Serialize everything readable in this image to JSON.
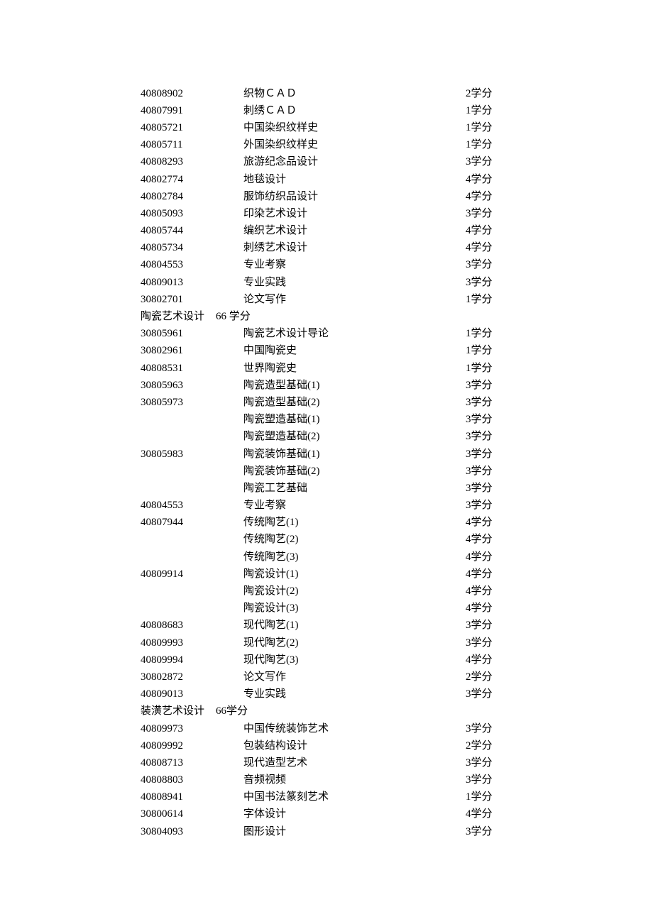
{
  "rows": [
    {
      "type": "course",
      "code": "40808902",
      "name": "织物ＣＡＤ",
      "credit": "2学分"
    },
    {
      "type": "course",
      "code": "40807991",
      "name": "刺绣ＣＡＤ",
      "credit": "1学分"
    },
    {
      "type": "course",
      "code": "40805721",
      "name": "中国染织纹样史",
      "credit": "1学分"
    },
    {
      "type": "course",
      "code": "40805711",
      "name": "外国染织纹样史",
      "credit": "1学分"
    },
    {
      "type": "course",
      "code": "40808293",
      "name": "旅游纪念品设计",
      "credit": "3学分"
    },
    {
      "type": "course",
      "code": "40802774",
      "name": "地毯设计",
      "credit": "4学分"
    },
    {
      "type": "course",
      "code": "40802784",
      "name": "服饰纺织品设计",
      "credit": "4学分"
    },
    {
      "type": "course",
      "code": "40805093",
      "name": "印染艺术设计",
      "credit": "3学分"
    },
    {
      "type": "course",
      "code": "40805744",
      "name": "编织艺术设计",
      "credit": "4学分"
    },
    {
      "type": "course",
      "code": "40805734",
      "name": "刺绣艺术设计",
      "credit": "4学分"
    },
    {
      "type": "course",
      "code": "40804553",
      "name": "专业考察",
      "credit": "3学分"
    },
    {
      "type": "course",
      "code": "40809013",
      "name": "专业实践",
      "credit": "3学分"
    },
    {
      "type": "course",
      "code": "30802701",
      "name": "论文写作",
      "credit": "1学分"
    },
    {
      "type": "section",
      "title": "陶瓷艺术设计",
      "credit": "66 学分"
    },
    {
      "type": "course",
      "code": "30805961",
      "name": "陶瓷艺术设计导论",
      "credit": "1学分"
    },
    {
      "type": "course",
      "code": "30802961",
      "name": "中国陶瓷史",
      "credit": "1学分"
    },
    {
      "type": "course",
      "code": "40808531",
      "name": "世界陶瓷史",
      "credit": "1学分"
    },
    {
      "type": "course",
      "code": "30805963",
      "name": "陶瓷造型基础(1)",
      "credit": "3学分"
    },
    {
      "type": "course",
      "code": "30805973",
      "name": "陶瓷造型基础(2)",
      "credit": "3学分"
    },
    {
      "type": "course",
      "code": "",
      "name": "陶瓷塑造基础(1)",
      "credit": "3学分"
    },
    {
      "type": "course",
      "code": "",
      "name": "陶瓷塑造基础(2)",
      "credit": "3学分"
    },
    {
      "type": "course",
      "code": "30805983",
      "name": "陶瓷装饰基础(1)",
      "credit": "3学分"
    },
    {
      "type": "course",
      "code": "",
      "name": "陶瓷装饰基础(2)",
      "credit": "3学分"
    },
    {
      "type": "course",
      "code": "",
      "name": "陶瓷工艺基础",
      "credit": "3学分"
    },
    {
      "type": "course",
      "code": "40804553",
      "name": "专业考察",
      "credit": "3学分"
    },
    {
      "type": "course",
      "code": "40807944",
      "name": "传统陶艺(1)",
      "credit": "4学分"
    },
    {
      "type": "course",
      "code": "",
      "name": "传统陶艺(2)",
      "credit": "4学分"
    },
    {
      "type": "course",
      "code": "",
      "name": "传统陶艺(3)",
      "credit": "4学分"
    },
    {
      "type": "course",
      "code": "40809914",
      "name": "陶瓷设计(1)",
      "credit": "4学分"
    },
    {
      "type": "course",
      "code": "",
      "name": "陶瓷设计(2)",
      "credit": "4学分"
    },
    {
      "type": "course",
      "code": "",
      "name": "陶瓷设计(3)",
      "credit": "4学分"
    },
    {
      "type": "course",
      "code": "40808683",
      "name": "现代陶艺(1)",
      "credit": "3学分"
    },
    {
      "type": "course",
      "code": "40809993",
      "name": "现代陶艺(2)",
      "credit": "3学分"
    },
    {
      "type": "course",
      "code": "40809994",
      "name": "现代陶艺(3)",
      "credit": "4学分"
    },
    {
      "type": "course",
      "code": "30802872",
      "name": "论文写作",
      "credit": "2学分"
    },
    {
      "type": "course",
      "code": "40809013",
      "name": "专业实践",
      "credit": "3学分"
    },
    {
      "type": "section",
      "title": "装潢艺术设计",
      "credit": "66学分"
    },
    {
      "type": "course",
      "code": "40809973",
      "name": "中国传统装饰艺术",
      "credit": "3学分"
    },
    {
      "type": "course",
      "code": "40809992",
      "name": "包装结构设计",
      "credit": "2学分"
    },
    {
      "type": "course",
      "code": "40808713",
      "name": "现代造型艺术",
      "credit": "3学分"
    },
    {
      "type": "course",
      "code": "40808803",
      "name": "音频视频",
      "credit": "3学分"
    },
    {
      "type": "course",
      "code": "40808941",
      "name": "中国书法篆刻艺术",
      "credit": "1学分"
    },
    {
      "type": "course",
      "code": "30800614",
      "name": "字体设计",
      "credit": "4学分"
    },
    {
      "type": "course",
      "code": "30804093",
      "name": "图形设计",
      "credit": "3学分"
    }
  ]
}
